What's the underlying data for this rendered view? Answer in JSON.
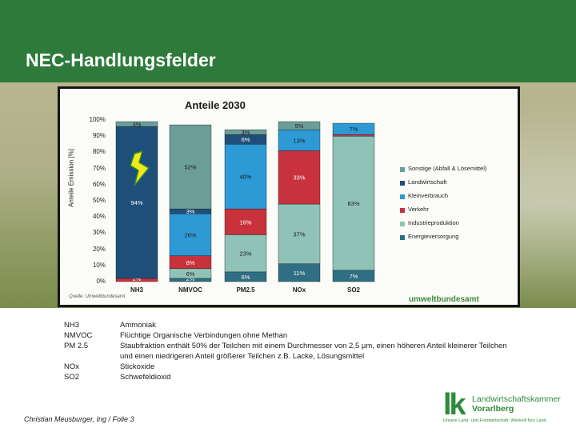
{
  "slide": {
    "title": "NEC-Handlungsfelder",
    "author": "Christian Meusburger, Ing / Folie 3"
  },
  "logo": {
    "mark": "lk",
    "name_line1": "Landwirtschaftskammer",
    "name_line2": "Vorarlberg",
    "slogan": "Unsere Land- und Forstwirtschaft. Wertvoll fürs Land."
  },
  "definitions": [
    {
      "abbr": "NH3",
      "text": "Ammoniak"
    },
    {
      "abbr": "NMVOC",
      "text": "Flüchtige Organische Verbindungen ohne Methan"
    },
    {
      "abbr": "PM 2.5",
      "text": "Staubfraktion enthält 50% der Teilchen mit einem Durchmesser von 2,5 µm, einen höheren Anteil kleinerer Teilchen und einen niedrigeren Anteil größerer Teilchen z.B. Lacke, Lösungsmittel"
    },
    {
      "abbr": "NOx",
      "text": "Stickoxide"
    },
    {
      "abbr": "SO2",
      "text": "Schwefeldioxid"
    }
  ],
  "chart_data": {
    "type": "bar",
    "stacked": true,
    "title": "Anteile 2030",
    "ylabel": "Anteile Emission [%]",
    "ylim": [
      0,
      100
    ],
    "yticks": [
      "0%",
      "10%",
      "20%",
      "30%",
      "40%",
      "50%",
      "60%",
      "70%",
      "80%",
      "90%",
      "100%"
    ],
    "categories": [
      "NH3",
      "NMVOC",
      "PM2.5",
      "NOx",
      "SO2"
    ],
    "series": [
      {
        "name": "Energieversorgung",
        "color": "#2e6f83",
        "values": [
          0,
          2,
          6,
          11,
          7
        ]
      },
      {
        "name": "Industrieproduktion",
        "color": "#8fc3b8",
        "values": [
          0,
          6,
          23,
          37,
          83
        ]
      },
      {
        "name": "Verkehr",
        "color": "#c8323c",
        "values": [
          2,
          8,
          16,
          33,
          1
        ]
      },
      {
        "name": "Kleinverbrauch",
        "color": "#2d9ad6",
        "values": [
          0,
          26,
          40,
          13,
          7
        ]
      },
      {
        "name": "Landwirtschaft",
        "color": "#1e4f7a",
        "values": [
          94,
          3,
          6,
          0,
          0
        ]
      },
      {
        "name": "Sonstige (Abfall & Lösemittel)",
        "color": "#6b9e98",
        "values": [
          3,
          52,
          3,
          5,
          0
        ]
      }
    ],
    "data_labels": [
      [
        "",
        "",
        "2%",
        "",
        "94%",
        "3%"
      ],
      [
        "2%",
        "6%",
        "8%",
        "26%",
        "3%",
        "52%"
      ],
      [
        "6%",
        "23%",
        "16%",
        "40%",
        "6%",
        "3%"
      ],
      [
        "11%",
        "37%",
        "33%",
        "13%",
        "",
        "5%"
      ],
      [
        "7%",
        "83%",
        "",
        "7%",
        "",
        ""
      ]
    ],
    "legend_position": "right",
    "source": "Quelle: Umweltbundesamt",
    "publisher": "umweltbundesamt"
  }
}
